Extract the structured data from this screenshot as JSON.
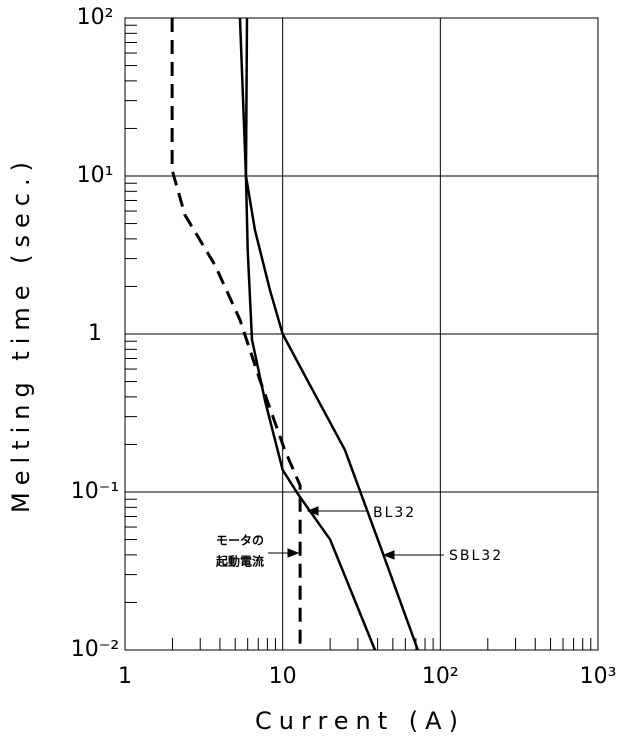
{
  "chart_data": {
    "type": "line",
    "xlabel": "Current (A)",
    "ylabel": "Melting time (sec.)",
    "xscale": "log",
    "yscale": "log",
    "grid": true,
    "xlim": [
      1,
      1000
    ],
    "xticks": [
      1,
      10,
      {
        "value": 100,
        "label": "10²"
      },
      {
        "value": 1000,
        "label": "10³"
      }
    ],
    "xminorticks": [
      2,
      3,
      4,
      5,
      6,
      7,
      8,
      9,
      20,
      30,
      40,
      50,
      60,
      70,
      80,
      90,
      200,
      300,
      400,
      500,
      600,
      700,
      800,
      900
    ],
    "ylim": [
      0.01,
      100
    ],
    "yticks": [
      {
        "value": 0.01,
        "label": "10⁻²"
      },
      {
        "value": 0.1,
        "label": "10⁻¹"
      },
      1,
      {
        "value": 10,
        "label": "10¹"
      },
      {
        "value": 100,
        "label": "10²"
      }
    ],
    "yminorticks": [
      0.02,
      0.03,
      0.04,
      0.05,
      0.06,
      0.07,
      0.08,
      0.09,
      0.2,
      0.3,
      0.4,
      0.5,
      0.6,
      0.7,
      0.8,
      0.9,
      2,
      3,
      4,
      5,
      6,
      7,
      8,
      9,
      20,
      30,
      40,
      50,
      60,
      70,
      80,
      90
    ],
    "series": [
      {
        "name": "BL32",
        "color": "#000000",
        "style": "solid",
        "x": [
          5.36,
          5.85,
          6.0,
          6.39,
          7.72,
          10,
          12.5,
          20,
          38.5
        ],
        "values": [
          100,
          10,
          3.4,
          0.92,
          0.38,
          0.138,
          0.097,
          0.05,
          0.01
        ]
      },
      {
        "name": "SBL32",
        "color": "#000000",
        "style": "solid",
        "x": [
          5.94,
          5.85,
          6.67,
          8.3,
          10,
          14.9,
          24.8,
          41.4,
          72
        ],
        "values": [
          100,
          10,
          4.55,
          1.9,
          1,
          0.475,
          0.185,
          0.046,
          0.01
        ]
      },
      {
        "color": "#000000",
        "style": "dashed",
        "x": [
          1.99,
          1.99,
          2.4,
          3.72,
          5.36,
          7.18,
          10.3,
          12.9,
          12.9
        ],
        "values": [
          100,
          10.9,
          5.66,
          2.73,
          1.23,
          0.51,
          0.185,
          0.11,
          0.01
        ]
      }
    ],
    "annotation": [
      "モータの",
      "起動電流"
    ]
  }
}
